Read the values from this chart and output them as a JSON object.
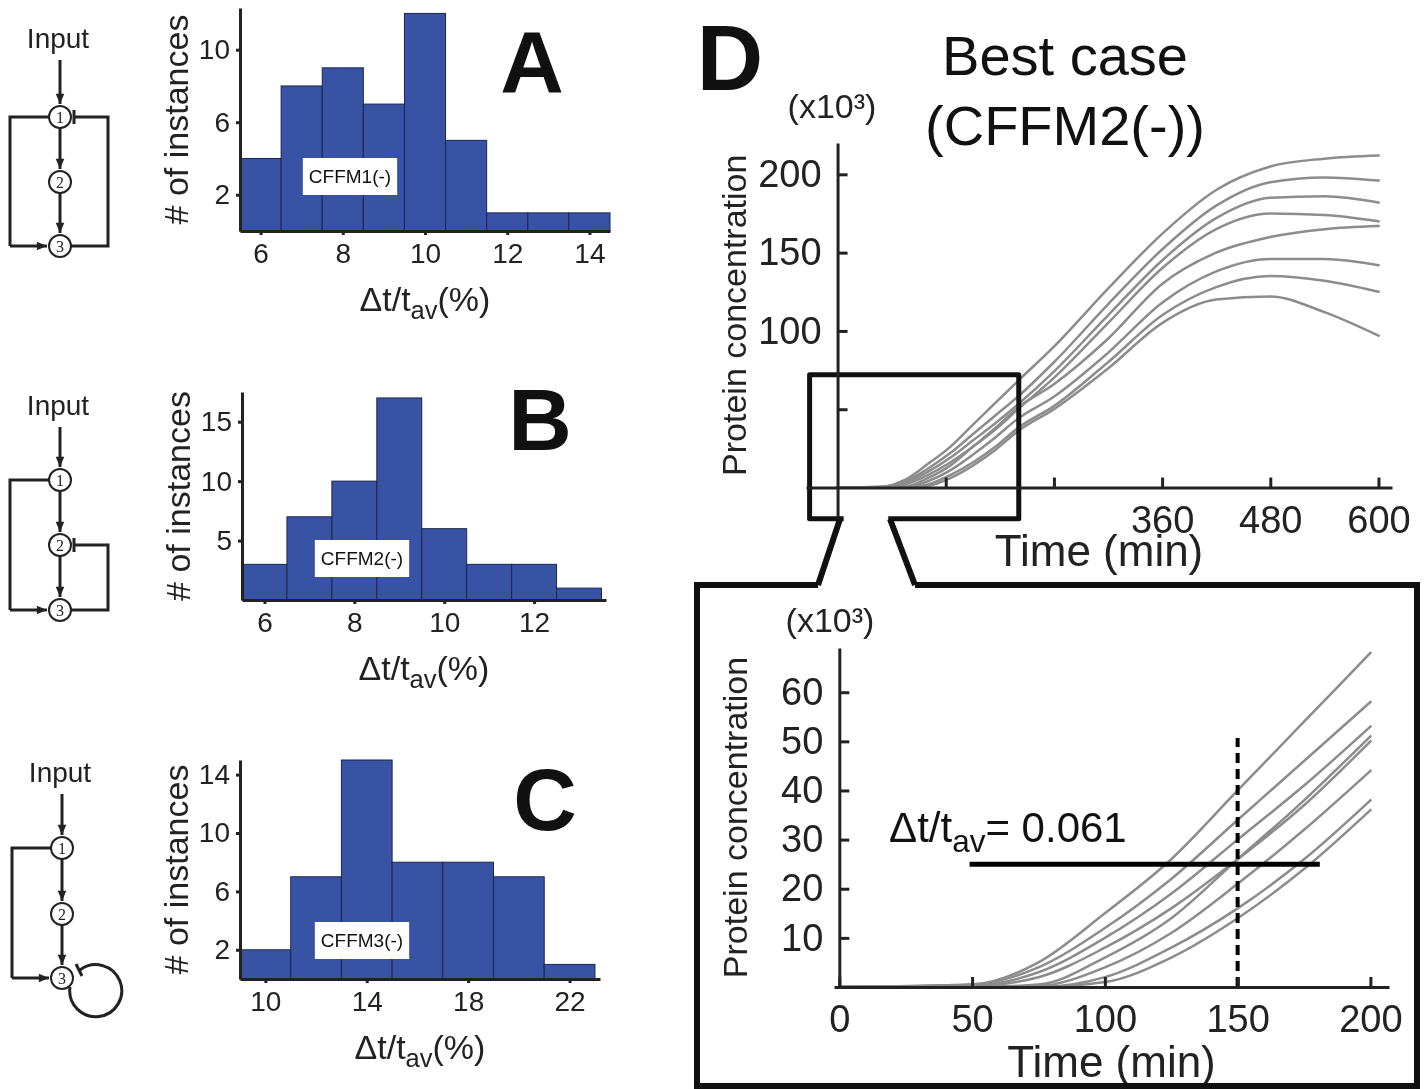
{
  "chart_data": [
    {
      "type": "histogram",
      "xlabel": "Δt/t$_{av}$(%)",
      "ylabel": "# of instances",
      "bins": [
        5.5,
        6.5,
        7.5,
        8.5,
        9.5,
        10.5,
        11.5,
        12.5,
        13.5,
        14.5
      ],
      "values": [
        4,
        8,
        9,
        7,
        12,
        5,
        1,
        1,
        1
      ],
      "color": "#3953a4",
      "xlim": [
        5.5,
        14.5
      ],
      "ylim": [
        0,
        12.3
      ],
      "xticks": [
        6,
        8,
        10,
        12,
        14
      ],
      "yticks": [
        2,
        6,
        10
      ],
      "annotations": [
        "A",
        "CFFM1(-)",
        "Input",
        "1",
        "2",
        "3"
      ]
    },
    {
      "type": "histogram",
      "xlabel": "Δt/t$_{av}$(%)",
      "ylabel": "# of instances",
      "bins": [
        5.5,
        6.5,
        7.5,
        8.5,
        9.5,
        10.5,
        11.5,
        12.5,
        13.5
      ],
      "values": [
        3,
        7,
        10,
        17,
        6,
        3,
        3,
        1
      ],
      "color": "#3953a4",
      "xlim": [
        5.5,
        13.6
      ],
      "ylim": [
        0,
        17.5
      ],
      "xticks": [
        6,
        8,
        10,
        12
      ],
      "yticks": [
        5,
        10,
        15
      ],
      "annotations": [
        "B",
        "CFFM2(-)",
        "Input",
        "1",
        "2",
        "3"
      ]
    },
    {
      "type": "histogram",
      "xlabel": "Δt/t$_{av}$(%)",
      "ylabel": "# of instances",
      "bins": [
        9,
        11,
        13,
        15,
        17,
        19,
        21,
        23
      ],
      "values": [
        2,
        7,
        15,
        8,
        8,
        7,
        1
      ],
      "color": "#3953a4",
      "xlim": [
        9,
        23.2
      ],
      "ylim": [
        0,
        15
      ],
      "xticks": [
        10,
        14,
        18,
        22
      ],
      "yticks": [
        2,
        6,
        10,
        14
      ],
      "annotations": [
        "C",
        "CFFM3(-)",
        "Input",
        "1",
        "2",
        "3"
      ]
    },
    {
      "type": "line",
      "title": "Best case",
      "subtitle": "(CFFM2(-))",
      "xlabel": "Time (min)",
      "ylabel": "Protein concentration",
      "xlim": [
        -35,
        615
      ],
      "ylim": [
        -22,
        220
      ],
      "xticks": [
        {
          "value": 120,
          "label": null
        },
        {
          "value": 240,
          "label": null
        },
        360,
        480,
        600
      ],
      "yticks": [
        {
          "value": 50,
          "label": null
        },
        100,
        150,
        200
      ],
      "x": [
        0,
        50,
        75,
        100,
        125,
        150,
        175,
        200,
        240,
        300,
        360,
        420,
        480,
        540,
        600
      ],
      "series": [
        {
          "color": "#8c8c8c",
          "values": [
            0,
            0.5,
            5,
            15,
            26,
            40,
            54,
            68,
            90,
            127,
            162,
            190,
            205,
            210,
            212
          ]
        },
        {
          "color": "#8c8c8c",
          "values": [
            0,
            0.5,
            4,
            12,
            22,
            34,
            46,
            58,
            80,
            117,
            152,
            180,
            195,
            198,
            196
          ]
        },
        {
          "color": "#8c8c8c",
          "values": [
            0,
            0.3,
            3,
            10,
            19,
            30,
            41,
            53,
            74,
            110,
            145,
            172,
            185,
            186,
            182
          ]
        },
        {
          "color": "#8c8c8c",
          "values": [
            0,
            0.2,
            2,
            8,
            16,
            26,
            37,
            50,
            70,
            105,
            140,
            165,
            175,
            174,
            170
          ]
        },
        {
          "color": "#8c8c8c",
          "values": [
            0,
            0,
            0.5,
            6,
            14,
            26,
            38,
            51,
            66,
            95,
            130,
            150,
            160,
            165,
            167
          ]
        },
        {
          "color": "#8c8c8c",
          "values": [
            0,
            0,
            0.2,
            4,
            11,
            21,
            32,
            44,
            58,
            86,
            118,
            138,
            146,
            146,
            142
          ]
        },
        {
          "color": "#8c8c8c",
          "values": [
            0,
            0,
            0,
            2,
            8,
            16,
            26,
            38,
            52,
            80,
            110,
            128,
            135,
            132,
            125
          ]
        },
        {
          "color": "#8c8c8c",
          "values": [
            0,
            0,
            0,
            1,
            6,
            14,
            24,
            36,
            50,
            76,
            105,
            120,
            122,
            112,
            97
          ]
        },
        {
          "type": "line",
          "color": "#111111",
          "x": [
            4,
            -31,
            -31,
            201,
            201,
            59
          ],
          "values": [
            -20,
            -20,
            72,
            72,
            -20,
            -20
          ]
        }
      ],
      "annotations": [
        "D",
        "(x10³)"
      ]
    },
    {
      "type": "line",
      "xlabel": "Time (min)",
      "ylabel": "Protein concentration",
      "xlim": [
        -2,
        207
      ],
      "ylim": [
        0,
        69
      ],
      "xticks": [
        0,
        50,
        100,
        150,
        200
      ],
      "yticks": [
        10,
        20,
        30,
        40,
        50,
        60
      ],
      "x": [
        0,
        50,
        75,
        100,
        125,
        150,
        175,
        200
      ],
      "series": [
        {
          "color": "#8c8c8c",
          "values": [
            0,
            0.5,
            5,
            15,
            26,
            40,
            54,
            68
          ]
        },
        {
          "color": "#8c8c8c",
          "values": [
            0,
            0.5,
            4,
            12,
            22,
            34,
            46,
            58
          ]
        },
        {
          "color": "#8c8c8c",
          "values": [
            0,
            0.3,
            3,
            10,
            19,
            30,
            41,
            53
          ]
        },
        {
          "color": "#8c8c8c",
          "values": [
            0,
            0.2,
            2,
            8,
            16,
            26,
            37,
            50
          ]
        },
        {
          "color": "#8c8c8c",
          "values": [
            0,
            0,
            0.5,
            6,
            14,
            26,
            38,
            51
          ]
        },
        {
          "color": "#8c8c8c",
          "values": [
            0,
            0,
            0.2,
            4,
            11,
            21,
            32,
            44
          ]
        },
        {
          "color": "#8c8c8c",
          "values": [
            0,
            0,
            0,
            2,
            8,
            16,
            26,
            38
          ]
        },
        {
          "color": "#8c8c8c",
          "values": [
            0,
            0,
            0,
            1,
            6,
            14,
            24,
            36
          ]
        },
        {
          "type": "line",
          "color": "#000000",
          "x": [
            50,
            180
          ],
          "values": [
            25,
            25
          ]
        }
      ],
      "ref_lines": [
        {
          "axis": "x",
          "value": 150,
          "color": "#000000",
          "line_style": "dashed"
        }
      ],
      "annotations": [
        "(x10³)",
        {
          "text": "Δt/t$_{av}$= 0.061",
          "x": 50,
          "y": 25
        }
      ]
    }
  ]
}
